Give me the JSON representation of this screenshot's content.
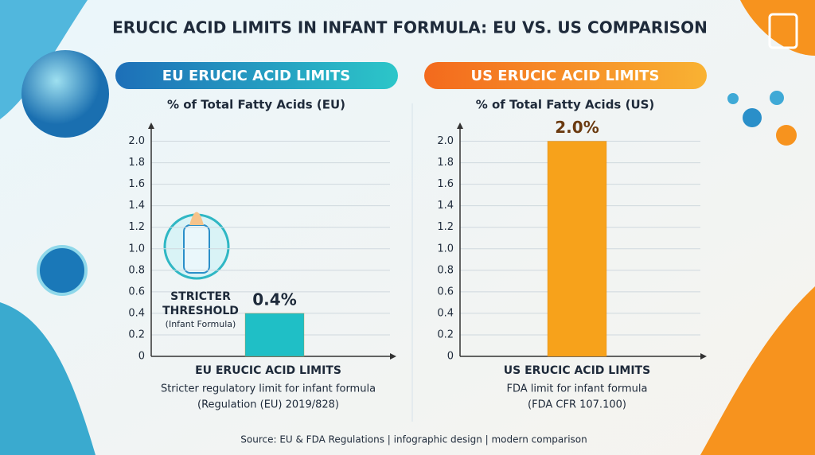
{
  "title": "ERUCIC ACID LIMITS IN INFANT FORMULA: EU VS. US COMPARISON",
  "chart_data": [
    {
      "type": "bar",
      "panel_title": "EU ERUCIC ACID LIMITS",
      "title": "% of Total Fatty Acids (EU)",
      "categories": [
        null
      ],
      "values": [
        0.4
      ],
      "value_labels": [
        "0.4%"
      ],
      "color": "#1fbfc6",
      "ylim": [
        0,
        2.1
      ],
      "yticks": [
        0,
        0.2,
        0.4,
        0.6,
        0.8,
        {
          "value": 1,
          "label": "1.0"
        },
        1.2,
        1.4,
        1.6,
        1.8,
        {
          "value": 2,
          "label": "2.0"
        }
      ],
      "grid": true,
      "xlabel": "EU ERUCIC ACID LIMITS",
      "caption": [
        "Stricter regulatory limit for infant formula",
        "(Regulation (EU) 2019/828)"
      ],
      "annotation": [
        "STRICTER",
        "THRESHOLD",
        "(Infant Formula)"
      ]
    },
    {
      "type": "bar",
      "panel_title": "US ERUCIC ACID LIMITS",
      "title": "% of Total Fatty Acids (US)",
      "categories": [
        null
      ],
      "values": [
        2.0
      ],
      "value_labels": [
        "2.0%"
      ],
      "color": "#f7a21b",
      "ylim": [
        0,
        2.1
      ],
      "yticks": [
        0,
        0.2,
        0.4,
        0.6,
        0.8,
        {
          "value": 1,
          "label": "1.0"
        },
        1.2,
        1.4,
        1.6,
        1.8,
        {
          "value": 2,
          "label": "2.0"
        }
      ],
      "grid": true,
      "xlabel": "US ERUCIC ACID LIMITS",
      "caption": [
        "FDA limit for infant formula",
        "(FDA CFR 107.100)"
      ]
    }
  ],
  "footer": "Source: EU & FDA Regulations | infographic design | modern comparison"
}
